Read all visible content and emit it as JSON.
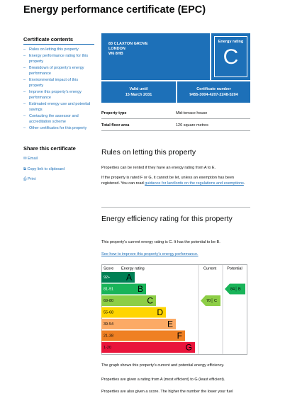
{
  "header": {
    "title": "Energy performance certificate (EPC)"
  },
  "contents": {
    "title": "Certificate contents",
    "items": [
      "Rules on letting this property",
      "Energy performance rating for this property",
      "Breakdown of property’s energy performance",
      "Environmental impact of this property",
      "Improve this property’s energy performance",
      "Estimated energy use and potential savings",
      "Contacting the assessor and accreditation scheme",
      "Other certificates for this property"
    ]
  },
  "share": {
    "title": "Share this certificate",
    "items": [
      "Email",
      "Copy link to clipboard",
      "Print"
    ]
  },
  "summary": {
    "address": [
      "83 CLAXTON GROVE",
      "LONDON",
      "W6 8HB"
    ],
    "rating_label": "Energy rating",
    "rating": "C",
    "valid_label": "Valid until",
    "valid": "15 March 2031",
    "cert_label": "Certificate number",
    "cert": "9455-3004-4207-2248-5204"
  },
  "details": {
    "rows": [
      [
        "Property type",
        "Mid-terrace house"
      ],
      [
        "Total floor area",
        "126 square metres"
      ]
    ]
  },
  "rules": {
    "title": "Rules on letting this property",
    "p1": "Properties can be rented if they have an energy rating from A to E.",
    "p2_before": "If the property is rated F or G, it cannot be let, unless an exemption has been registered. You can read ",
    "p2_link": "guidance for landlords on the regulations and exemptions",
    "p2_after": "."
  },
  "efficiency": {
    "title": "Energy efficiency rating for this property",
    "text": "This property’s current energy rating is C. It has the potential to be B.",
    "link": "See how to improve this property’s energy performance.",
    "graph": {
      "headers": [
        "Score",
        "Energy rating",
        "Current",
        "Potential"
      ],
      "bands": [
        {
          "score": "92+",
          "letter": "A",
          "color": "#008054"
        },
        {
          "score": "81-91",
          "letter": "B",
          "color": "#19b459"
        },
        {
          "score": "69-80",
          "letter": "C",
          "color": "#8dce46"
        },
        {
          "score": "55-68",
          "letter": "D",
          "color": "#ffd500"
        },
        {
          "score": "39-54",
          "letter": "E",
          "color": "#fcaa65"
        },
        {
          "score": "21-38",
          "letter": "F",
          "color": "#ef8023"
        },
        {
          "score": "1-20",
          "letter": "G",
          "color": "#e9153b"
        }
      ],
      "current": {
        "value": 70,
        "letter": "C"
      },
      "potential": {
        "value": 84,
        "letter": "B"
      }
    },
    "notes": [
      "The graph shows this property’s current and potential energy efficiency.",
      "Properties are given a rating from A (most efficient) to G (least efficient).",
      "Properties are also given a score. The higher the number the lower your fuel"
    ]
  }
}
